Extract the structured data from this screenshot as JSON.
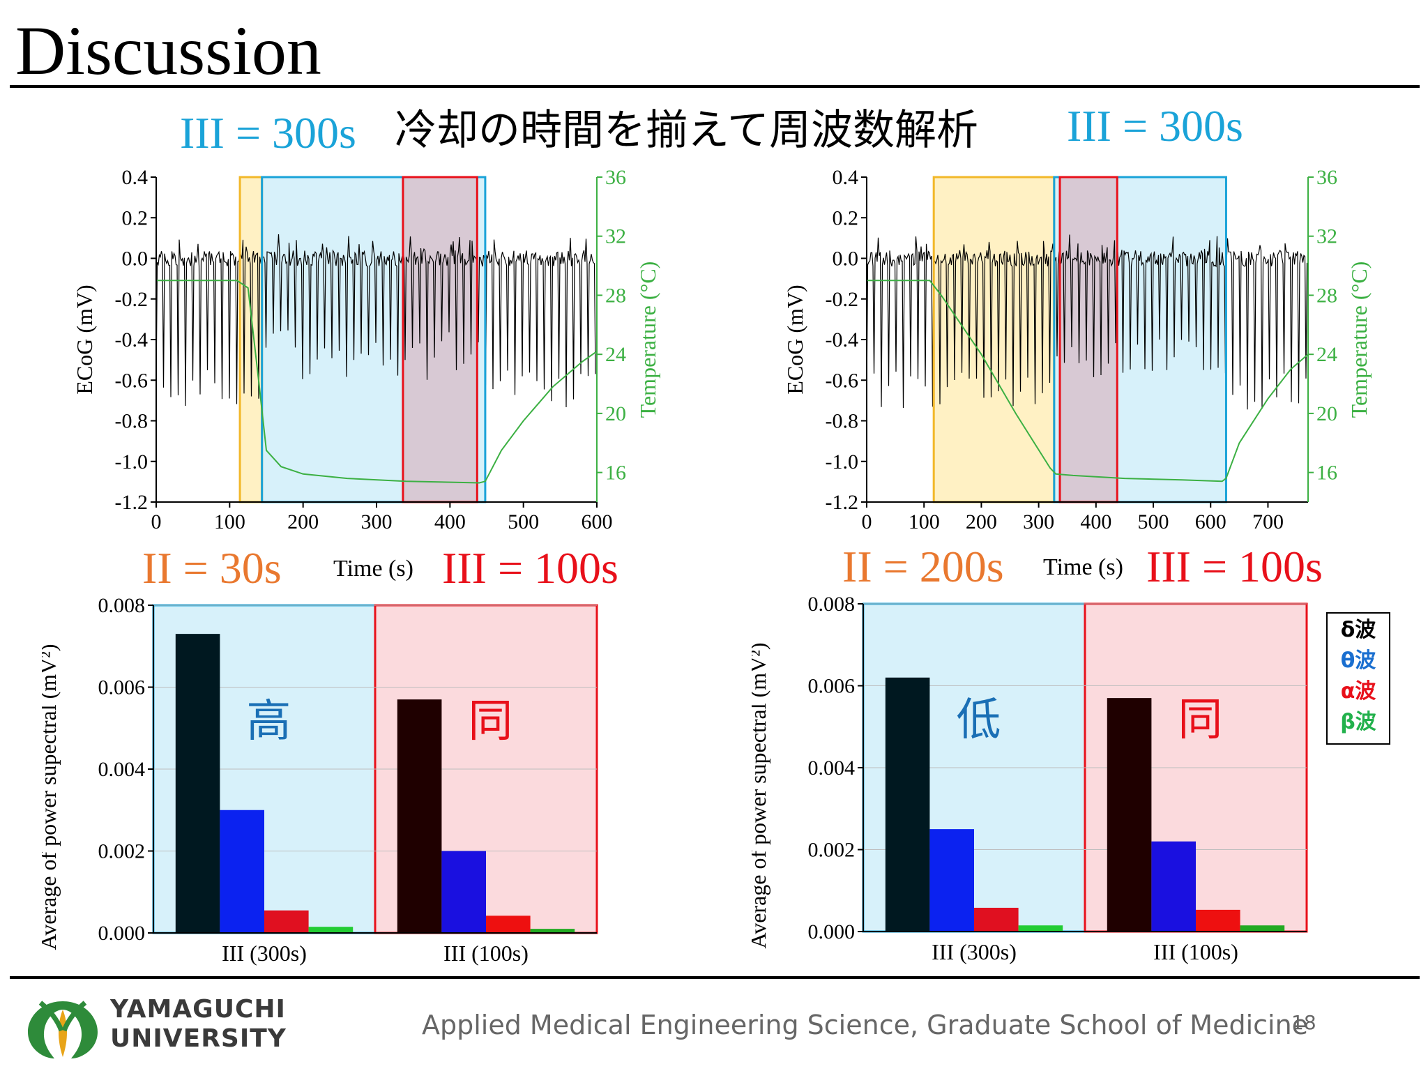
{
  "slide": {
    "title": "Discussion",
    "subtitle_jp": "冷却の時間を揃えて周波数解析",
    "label_left_top": "III = 300s",
    "label_right_top": "III = 300s",
    "label_left_ii": "II = 30s",
    "label_left_iii": "III = 100s",
    "label_right_ii": "II = 200s",
    "label_right_iii": "III = 100s",
    "time_label": "Time (s)",
    "page_number": "18",
    "footer": "Applied Medical Engineering Science, Graduate School of Medicine",
    "university_line1": "YAMAGUCHI",
    "university_line2": "UNIVERSITY"
  },
  "colors": {
    "blue_label": "#1aa3d8",
    "orange_label": "#e9782f",
    "red_label": "#e8101a",
    "temperature_green": "#3cb043",
    "cyan_region": "#d7f1fa",
    "pink_region": "#fbdadd",
    "yellow_region": "#fff1c4"
  },
  "legend": {
    "items": [
      {
        "label": "δ波",
        "color": "#000000"
      },
      {
        "label": "θ波",
        "color": "#1a6fd0"
      },
      {
        "label": "α波",
        "color": "#e8101a"
      },
      {
        "label": "β波",
        "color": "#22b14c"
      }
    ]
  },
  "chart_data": [
    {
      "type": "line",
      "id": "ecog-left",
      "xlabel": "Time (s)",
      "ylabel": "ECoG (mV)",
      "y2label": "Temperature (°C)",
      "xlim": [
        0,
        600
      ],
      "ylim": [
        -1.2,
        0.4
      ],
      "y2lim": [
        14,
        36
      ],
      "x_ticks": [
        0,
        100,
        200,
        300,
        400,
        500,
        600
      ],
      "y_ticks": [
        "0.4",
        "0.2",
        "0.0",
        "-0.2",
        "-0.4",
        "-0.6",
        "-0.8",
        "-1.0",
        "-1.2"
      ],
      "y2_ticks": [
        36,
        32,
        28,
        24,
        20,
        16
      ],
      "regions": [
        {
          "name": "II",
          "x0": 114,
          "x1": 144,
          "color": "yellow"
        },
        {
          "name": "III",
          "x0": 144,
          "x1": 448,
          "color": "cyan"
        },
        {
          "name": "III-100",
          "x0": 336,
          "x1": 437,
          "color": "red"
        }
      ],
      "temperature": {
        "x": [
          0,
          110,
          125,
          140,
          150,
          170,
          200,
          260,
          340,
          440,
          448,
          470,
          500,
          540,
          580,
          600
        ],
        "y": [
          29,
          29,
          28.5,
          22,
          17.5,
          16.4,
          15.9,
          15.6,
          15.4,
          15.3,
          15.4,
          17.5,
          19.5,
          21.8,
          23.5,
          24.2
        ]
      }
    },
    {
      "type": "line",
      "id": "ecog-right",
      "xlabel": "Time (s)",
      "ylabel": "ECoG (mV)",
      "y2label": "Temperature (°C)",
      "xlim": [
        0,
        770
      ],
      "ylim": [
        -1.2,
        0.4
      ],
      "y2lim": [
        14,
        36
      ],
      "x_ticks": [
        0,
        100,
        200,
        300,
        400,
        500,
        600,
        700
      ],
      "y_ticks": [
        "0.4",
        "0.2",
        "0.0",
        "-0.2",
        "-0.4",
        "-0.6",
        "-0.8",
        "-1.0",
        "-1.2"
      ],
      "y2_ticks": [
        36,
        32,
        28,
        24,
        20,
        16
      ],
      "regions": [
        {
          "name": "II",
          "x0": 117,
          "x1": 327,
          "color": "yellow"
        },
        {
          "name": "III",
          "x0": 327,
          "x1": 627,
          "color": "cyan"
        },
        {
          "name": "III-100",
          "x0": 337,
          "x1": 437,
          "color": "red"
        }
      ],
      "temperature": {
        "x": [
          0,
          110,
          130,
          200,
          260,
          320,
          330,
          360,
          450,
          550,
          620,
          627,
          650,
          700,
          740,
          770
        ],
        "y": [
          29,
          29,
          28,
          24,
          20,
          16.3,
          15.9,
          15.8,
          15.6,
          15.5,
          15.4,
          15.6,
          18,
          21,
          23,
          24
        ]
      }
    },
    {
      "type": "bar",
      "id": "power-left",
      "ylabel": "Average of power supectral (mV²)",
      "categories": [
        "III (300s)",
        "III (100s)"
      ],
      "ylim": [
        0,
        0.008
      ],
      "y_ticks": [
        "0.000",
        "0.002",
        "0.004",
        "0.006",
        "0.008"
      ],
      "series": [
        {
          "name": "δ波",
          "values": [
            0.0073,
            0.0057
          ]
        },
        {
          "name": "θ波",
          "values": [
            0.003,
            0.002
          ]
        },
        {
          "name": "α波",
          "values": [
            0.00055,
            0.00042
          ]
        },
        {
          "name": "β波",
          "values": [
            0.00015,
            0.0001
          ]
        }
      ],
      "annotations": [
        "高",
        "同"
      ]
    },
    {
      "type": "bar",
      "id": "power-right",
      "ylabel": "Average of power supectral (mV²)",
      "categories": [
        "III (300s)",
        "III (100s)"
      ],
      "ylim": [
        0,
        0.008
      ],
      "y_ticks": [
        "0.000",
        "0.002",
        "0.004",
        "0.006",
        "0.008"
      ],
      "series": [
        {
          "name": "δ波",
          "values": [
            0.0062,
            0.0057
          ]
        },
        {
          "name": "θ波",
          "values": [
            0.0025,
            0.0022
          ]
        },
        {
          "name": "α波",
          "values": [
            0.00058,
            0.00053
          ]
        },
        {
          "name": "β波",
          "values": [
            0.00015,
            0.00015
          ]
        }
      ],
      "annotations": [
        "低",
        "同"
      ]
    }
  ]
}
